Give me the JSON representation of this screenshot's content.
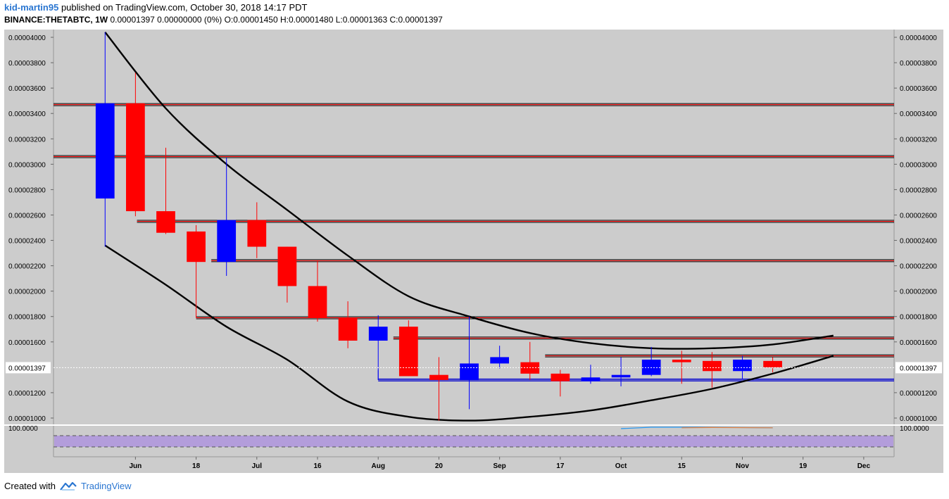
{
  "header": {
    "author": "kid-martin95",
    "published_text": "published on TradingView.com, October 30, 2018 14:17 PDT",
    "symbol_line": "BINANCE:THETABTC, 1W",
    "ohlc_line": "0.00001397 0.00000000 (0%) O:0.00001450 H:0.00001480 L:0.00001363 C:0.00001397"
  },
  "footer": {
    "created_with": "Created with",
    "brand": "TradingView"
  },
  "colors": {
    "background": "#cccccc",
    "up": "#0000ff",
    "down": "#ff0000",
    "curve": "#000000",
    "indicator_band": "#b39ddb"
  },
  "chart_data": {
    "type": "candlestick",
    "y_axis": {
      "ticks": [
        "0.00004000",
        "0.00003800",
        "0.00003600",
        "0.00003400",
        "0.00003200",
        "0.00003000",
        "0.00002800",
        "0.00002600",
        "0.00002400",
        "0.00002200",
        "0.00002000",
        "0.00001800",
        "0.00001600",
        "0.00001200",
        "0.00001000"
      ],
      "tick_values": [
        4e-05,
        3.8e-05,
        3.6e-05,
        3.4e-05,
        3.2e-05,
        3e-05,
        2.8e-05,
        2.6e-05,
        2.4e-05,
        2.2e-05,
        2e-05,
        1.8e-05,
        1.6e-05,
        1.2e-05,
        1e-05
      ],
      "range": [
        9.5e-06,
        4.05e-05
      ],
      "last_price_label": "0.00001397",
      "last_price": 1.397e-05
    },
    "x_axis": {
      "labels": [
        "Jun",
        "18",
        "Jul",
        "16",
        "Aug",
        "20",
        "Sep",
        "17",
        "Oct",
        "15",
        "Nov",
        "19",
        "Dec"
      ],
      "label_weeks": [
        1,
        3,
        5,
        7,
        9,
        11,
        13,
        15,
        17,
        19,
        21,
        23,
        25
      ],
      "week_range": [
        -1.7,
        26
      ]
    },
    "candles": [
      {
        "week": 0,
        "open": 2.73e-05,
        "high": 4.04e-05,
        "low": 2.35e-05,
        "close": 3.48e-05
      },
      {
        "week": 1,
        "open": 3.48e-05,
        "high": 3.72e-05,
        "low": 2.59e-05,
        "close": 2.63e-05
      },
      {
        "week": 2,
        "open": 2.63e-05,
        "high": 3.13e-05,
        "low": 2.45e-05,
        "close": 2.46e-05
      },
      {
        "week": 3,
        "open": 2.47e-05,
        "high": 2.52e-05,
        "low": 1.79e-05,
        "close": 2.23e-05
      },
      {
        "week": 4,
        "open": 2.23e-05,
        "high": 3.05e-05,
        "low": 2.12e-05,
        "close": 2.56e-05
      },
      {
        "week": 5,
        "open": 2.56e-05,
        "high": 2.7e-05,
        "low": 2.26e-05,
        "close": 2.35e-05
      },
      {
        "week": 6,
        "open": 2.35e-05,
        "high": 2.35e-05,
        "low": 1.91e-05,
        "close": 2.04e-05
      },
      {
        "week": 7,
        "open": 2.04e-05,
        "high": 2.24e-05,
        "low": 1.76e-05,
        "close": 1.79e-05
      },
      {
        "week": 8,
        "open": 1.79e-05,
        "high": 1.92e-05,
        "low": 1.55e-05,
        "close": 1.61e-05
      },
      {
        "week": 9,
        "open": 1.61e-05,
        "high": 1.81e-05,
        "low": 1.3e-05,
        "close": 1.72e-05
      },
      {
        "week": 10,
        "open": 1.72e-05,
        "high": 1.77e-05,
        "low": 1.33e-05,
        "close": 1.33e-05
      },
      {
        "week": 11,
        "open": 1.34e-05,
        "high": 1.48e-05,
        "low": 9.8e-06,
        "close": 1.3e-05
      },
      {
        "week": 12,
        "open": 1.3e-05,
        "high": 1.8e-05,
        "low": 1.07e-05,
        "close": 1.43e-05
      },
      {
        "week": 13,
        "open": 1.43e-05,
        "high": 1.57e-05,
        "low": 1.39e-05,
        "close": 1.48e-05
      },
      {
        "week": 14,
        "open": 1.44e-05,
        "high": 1.6e-05,
        "low": 1.3e-05,
        "close": 1.35e-05
      },
      {
        "week": 15,
        "open": 1.35e-05,
        "high": 1.38e-05,
        "low": 1.17e-05,
        "close": 1.29e-05
      },
      {
        "week": 16,
        "open": 1.29e-05,
        "high": 1.42e-05,
        "low": 1.27e-05,
        "close": 1.32e-05
      },
      {
        "week": 17,
        "open": 1.32e-05,
        "high": 1.48e-05,
        "low": 1.25e-05,
        "close": 1.34e-05
      },
      {
        "week": 18,
        "open": 1.34e-05,
        "high": 1.56e-05,
        "low": 1.33e-05,
        "close": 1.46e-05
      },
      {
        "week": 19,
        "open": 1.46e-05,
        "high": 1.53e-05,
        "low": 1.27e-05,
        "close": 1.44e-05
      },
      {
        "week": 20,
        "open": 1.45e-05,
        "high": 1.52e-05,
        "low": 1.24e-05,
        "close": 1.37e-05
      },
      {
        "week": 21,
        "open": 1.37e-05,
        "high": 1.49e-05,
        "low": 1.31e-05,
        "close": 1.46e-05
      },
      {
        "week": 22,
        "open": 1.45e-05,
        "high": 1.48e-05,
        "low": 1.36e-05,
        "close": 1.4e-05
      }
    ],
    "horizontal_levels": [
      {
        "price": 3.47e-05,
        "from_week": -1.7
      },
      {
        "price": 3.06e-05,
        "from_week": -1.7
      },
      {
        "price": 2.55e-05,
        "from_week": 1.05
      },
      {
        "price": 2.24e-05,
        "from_week": 3.5
      },
      {
        "price": 1.79e-05,
        "from_week": 3
      },
      {
        "price": 1.63e-05,
        "from_week": 9.5
      },
      {
        "price": 1.49e-05,
        "from_week": 14.5
      },
      {
        "price": 1.3e-05,
        "from_week": 9
      }
    ],
    "upper_curve": [
      [
        0,
        4.04e-05
      ],
      [
        2,
        3.44e-05
      ],
      [
        4,
        3e-05
      ],
      [
        6,
        2.64e-05
      ],
      [
        8,
        2.28e-05
      ],
      [
        10,
        1.96e-05
      ],
      [
        12,
        1.8e-05
      ],
      [
        14,
        1.67e-05
      ],
      [
        16,
        1.59e-05
      ],
      [
        18,
        1.55e-05
      ],
      [
        20,
        1.55e-05
      ],
      [
        22,
        1.58e-05
      ],
      [
        24,
        1.65e-05
      ]
    ],
    "lower_curve": [
      [
        0,
        2.36e-05
      ],
      [
        2,
        2.05e-05
      ],
      [
        4,
        1.72e-05
      ],
      [
        6,
        1.46e-05
      ],
      [
        8,
        1.13e-05
      ],
      [
        10,
        1.01e-05
      ],
      [
        12,
        9.8e-06
      ],
      [
        14,
        1.01e-05
      ],
      [
        16,
        1.06e-05
      ],
      [
        18,
        1.14e-05
      ],
      [
        20,
        1.23e-05
      ],
      [
        22,
        1.35e-05
      ],
      [
        24,
        1.49e-05
      ]
    ],
    "indicator": {
      "label": "100.0000",
      "value": 100,
      "line1": [
        [
          17,
          95
        ],
        [
          18,
          100
        ],
        [
          19.5,
          100
        ],
        [
          22,
          98
        ]
      ],
      "line2": [
        [
          19,
          98
        ],
        [
          20,
          99
        ],
        [
          22,
          98
        ]
      ]
    }
  }
}
